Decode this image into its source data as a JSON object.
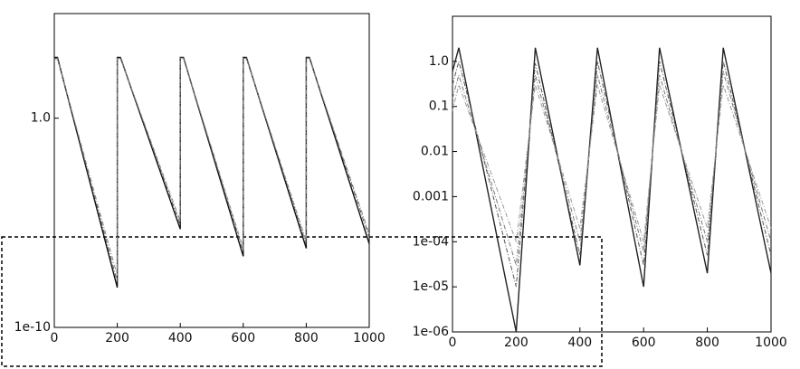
{
  "chart_data": [
    {
      "type": "line",
      "ylog": true,
      "x": [
        0,
        10,
        200,
        200,
        210,
        400,
        400,
        410,
        600,
        600,
        610,
        800,
        800,
        810,
        1000
      ],
      "series": [
        {
          "color": "#111111",
          "values": [
            800,
            800,
            8e-09,
            800,
            800,
            5e-06,
            800,
            800,
            2.5e-07,
            800,
            800,
            6e-07,
            800,
            800,
            1e-06
          ]
        },
        {
          "color": "#555555",
          "values": [
            700,
            750,
            1.5e-08,
            750,
            760,
            8e-06,
            760,
            760,
            4e-07,
            760,
            760,
            9e-07,
            760,
            760,
            2e-06
          ]
        },
        {
          "color": "#888888",
          "values": [
            650,
            700,
            3e-08,
            700,
            720,
            1.2e-05,
            720,
            720,
            6e-07,
            720,
            720,
            1.3e-06,
            720,
            720,
            3e-06
          ]
        }
      ],
      "xlim": [
        0,
        1000
      ],
      "xticks": [
        0,
        200,
        400,
        600,
        800,
        1000
      ],
      "ylim": [
        1e-10,
        100000
      ],
      "yticks": [
        {
          "value": 1,
          "label": "1.0"
        },
        {
          "value": 1e-10,
          "label": "1e-10"
        }
      ]
    },
    {
      "type": "line",
      "ylog": true,
      "x": [
        0,
        20,
        200,
        260,
        400,
        455,
        600,
        650,
        800,
        850,
        1000
      ],
      "series": [
        {
          "color": "#222222",
          "values": [
            0.6,
            2,
            1e-06,
            2,
            3e-05,
            2,
            1e-05,
            2,
            2e-05,
            2,
            2e-05
          ]
        },
        {
          "color": "#555555",
          "values": [
            0.3,
            1,
            1e-05,
            0.9,
            5e-05,
            1,
            3e-05,
            1,
            5e-05,
            1,
            5e-05
          ]
        },
        {
          "color": "#777777",
          "values": [
            0.15,
            0.5,
            3e-05,
            0.5,
            0.0001,
            0.5,
            6e-05,
            0.5,
            0.0001,
            0.6,
            0.0001
          ]
        },
        {
          "color": "#999999",
          "values": [
            0.08,
            0.3,
            0.0001,
            0.3,
            0.0002,
            0.3,
            0.0001,
            0.3,
            0.0002,
            0.3,
            0.0002
          ]
        }
      ],
      "xlim": [
        0,
        1000
      ],
      "xticks": [
        0,
        200,
        400,
        600,
        800,
        1000
      ],
      "ylim": [
        1e-06,
        10
      ],
      "yticks": [
        {
          "value": 1,
          "label": "1.0"
        },
        0.1,
        0.01,
        0.001,
        {
          "value": 0.0001,
          "label": "1e-04"
        },
        {
          "value": 1e-05,
          "label": "1e-05"
        },
        {
          "value": 1e-06,
          "label": "1e-06"
        }
      ]
    }
  ]
}
